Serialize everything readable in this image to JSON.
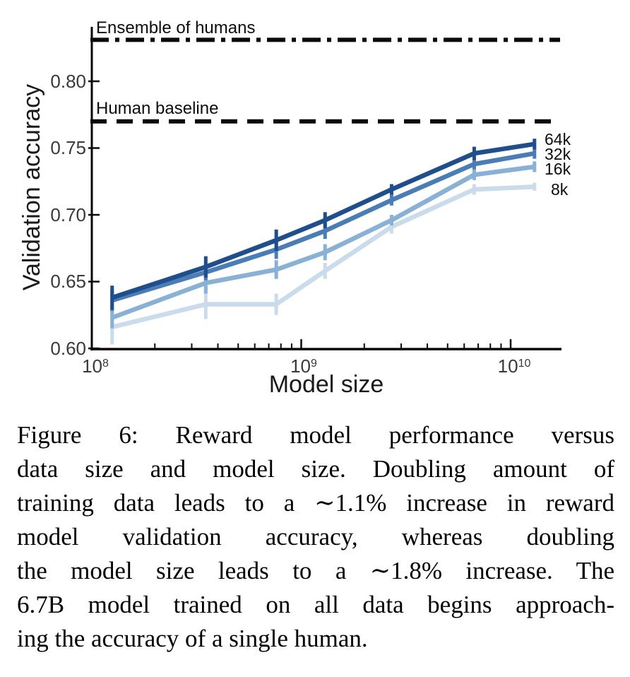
{
  "chart": {
    "ylabel": "Validation accuracy",
    "xlabel": "Model size",
    "y_ticks": [
      "0.80",
      "0.75",
      "0.70",
      "0.65",
      "0.60"
    ],
    "x_ticks": [
      {
        "base": "10",
        "exp": "8"
      },
      {
        "base": "10",
        "exp": "9"
      },
      {
        "base": "10",
        "exp": "10"
      }
    ],
    "annotations": {
      "ensemble": "Ensemble of humans",
      "human": "Human baseline"
    }
  },
  "chart_data": {
    "type": "line",
    "title": "",
    "xlabel": "Model size",
    "ylabel": "Validation accuracy",
    "x_scale": "log",
    "xlim": [
      100000000,
      17400000000
    ],
    "ylim": [
      0.6,
      0.845
    ],
    "grid": false,
    "legend_position": "right-end-labels",
    "x": [
      125000000,
      350000000,
      760000000,
      1300000000,
      2700000000,
      6700000000,
      13000000000
    ],
    "y_tick_values": [
      0.6,
      0.65,
      0.7,
      0.75,
      0.8
    ],
    "x_major_ticks": [
      100000000,
      1000000000,
      10000000000
    ],
    "series": [
      {
        "name": "64k",
        "color": "#1f4e8c",
        "values": [
          0.638,
          0.661,
          0.681,
          0.696,
          0.719,
          0.746,
          0.753
        ],
        "err": [
          0.009,
          0.008,
          0.008,
          0.006,
          0.004,
          0.005,
          0.004
        ]
      },
      {
        "name": "32k",
        "color": "#4a7db5",
        "values": [
          0.636,
          0.657,
          0.674,
          0.688,
          0.711,
          0.738,
          0.746
        ],
        "err": [
          0.008,
          0.006,
          0.007,
          0.006,
          0.004,
          0.004,
          0.004
        ]
      },
      {
        "name": "16k",
        "color": "#89b1d6",
        "values": [
          0.623,
          0.649,
          0.659,
          0.672,
          0.696,
          0.73,
          0.736
        ],
        "err": [
          0.008,
          0.008,
          0.007,
          0.006,
          0.004,
          0.004,
          0.004
        ]
      },
      {
        "name": "8k",
        "color": "#cadbeb",
        "values": [
          0.616,
          0.633,
          0.633,
          0.658,
          0.691,
          0.719,
          0.721
        ],
        "err": [
          0.013,
          0.011,
          0.008,
          0.006,
          0.005,
          0.004,
          0.003
        ]
      }
    ],
    "baselines": [
      {
        "label": "Ensemble of humans",
        "value": 0.831,
        "style": "dashdot",
        "color": "#0a0a0a"
      },
      {
        "label": "Human baseline",
        "value": 0.77,
        "style": "dashed",
        "color": "#0a0a0a"
      }
    ]
  },
  "caption": {
    "lines": [
      "Figure 6: Reward model performance versus",
      "data size and model size. Doubling amount of",
      "training data leads to a ∼1.1% increase in reward",
      "model validation accuracy, whereas doubling",
      "the model size leads to a ∼1.8% increase. The",
      "6.7B model trained on all data begins approach-",
      "ing the accuracy of a single human."
    ]
  }
}
